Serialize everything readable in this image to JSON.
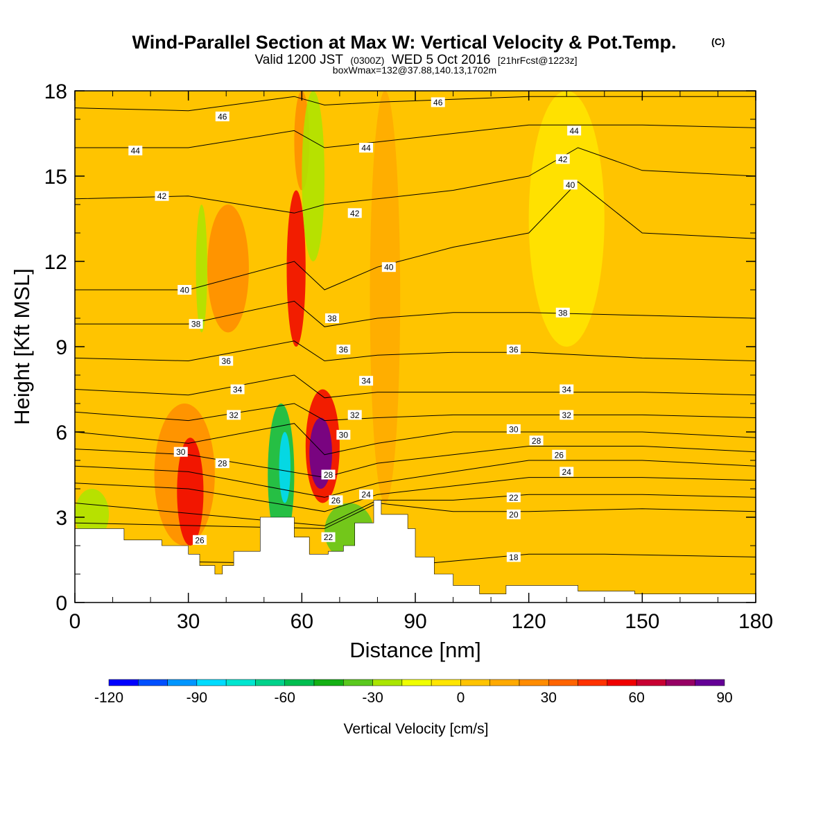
{
  "title": {
    "main": "Wind-Parallel Section at Max W: Vertical Velocity & Pot.Temp.",
    "units_mark": "(C)",
    "valid_prefix": "Valid 1200 JST",
    "valid_utc": "(0300Z)",
    "valid_date": "WED 5 Oct 2016",
    "forecast": "[21hrFcst@1223z]",
    "box_note": "boxWmax=132@37.88,140.13,1702m"
  },
  "colors": {
    "background_field": "#ffc400",
    "terrain": "#ffffff",
    "contour": "#000000",
    "frame": "#000000"
  },
  "chart_data": {
    "type": "heatmap",
    "subtype": "vertical cross-section: filled vertical velocity with potential temperature contours",
    "xlabel": "Distance [nm]",
    "ylabel": "Height [Kft MSL]",
    "xlim": [
      0,
      180
    ],
    "ylim": [
      0,
      18
    ],
    "x_ticks": [
      0,
      30,
      60,
      90,
      120,
      150,
      180
    ],
    "y_ticks": [
      0,
      3,
      6,
      9,
      12,
      15,
      18
    ],
    "grid": false,
    "colorbar": {
      "title": "Vertical Velocity [cm/s]",
      "placement": "bottom",
      "bounds": [
        -120,
        -110,
        -100,
        -90,
        -80,
        -70,
        -60,
        -50,
        -40,
        -30,
        -20,
        -10,
        0,
        10,
        20,
        30,
        40,
        50,
        60,
        70,
        80,
        90
      ],
      "colors": [
        "#0000ff",
        "#0050ff",
        "#0096ff",
        "#00dcff",
        "#00e6d0",
        "#00d28a",
        "#00be50",
        "#14b014",
        "#5ac81e",
        "#aae600",
        "#f0ff00",
        "#ffe600",
        "#ffc400",
        "#ffaa00",
        "#ff8c00",
        "#ff6400",
        "#ff3200",
        "#f00000",
        "#c80032",
        "#960064",
        "#640096"
      ],
      "tick_labels": [
        "-120",
        "-90",
        "-60",
        "-30",
        "0",
        "30",
        "60",
        "90"
      ]
    },
    "vertical_velocity_cells": [
      {
        "x": [
          0,
          9
        ],
        "y": [
          2.2,
          4.0
        ],
        "w": -25
      },
      {
        "x": [
          11,
          32
        ],
        "y": [
          3.0,
          15.5
        ],
        "w": 5
      },
      {
        "x": [
          21,
          37
        ],
        "y": [
          2.0,
          7.0
        ],
        "w": 25
      },
      {
        "x": [
          27,
          34
        ],
        "y": [
          2.0,
          5.8
        ],
        "w": 55
      },
      {
        "x": [
          32,
          35
        ],
        "y": [
          9.5,
          14.0
        ],
        "w": -25
      },
      {
        "x": [
          35,
          46
        ],
        "y": [
          9.5,
          14.0
        ],
        "w": 25
      },
      {
        "x": [
          51,
          58
        ],
        "y": [
          2.0,
          7.0
        ],
        "w": -55
      },
      {
        "x": [
          54,
          57
        ],
        "y": [
          3.5,
          6.0
        ],
        "w": -85
      },
      {
        "x": [
          56,
          61
        ],
        "y": [
          9.0,
          14.5
        ],
        "w": 55
      },
      {
        "x": [
          58,
          62
        ],
        "y": [
          14.5,
          18.0
        ],
        "w": 25
      },
      {
        "x": [
          60,
          66
        ],
        "y": [
          12.0,
          18.0
        ],
        "w": -25
      },
      {
        "x": [
          61,
          70
        ],
        "y": [
          3.5,
          7.5
        ],
        "w": 55
      },
      {
        "x": [
          62,
          68
        ],
        "y": [
          4.0,
          6.5
        ],
        "w": 80
      },
      {
        "x": [
          66,
          79
        ],
        "y": [
          1.5,
          3.5
        ],
        "w": -35
      },
      {
        "x": [
          78,
          86
        ],
        "y": [
          3.5,
          18.0
        ],
        "w": 15
      },
      {
        "x": [
          140,
          150
        ],
        "y": [
          0.5,
          4.5
        ],
        "w": 5
      },
      {
        "x": [
          120,
          140
        ],
        "y": [
          9.0,
          18.0
        ],
        "w": -5
      }
    ],
    "terrain_height": {
      "x": [
        0,
        13,
        13,
        23,
        23,
        30,
        30,
        33,
        33,
        37,
        37,
        39,
        39,
        42,
        42,
        49,
        49,
        58,
        58,
        62,
        62,
        67,
        67,
        71,
        71,
        74,
        74,
        79,
        79,
        81,
        81,
        88,
        88,
        90,
        90,
        95,
        95,
        100,
        100,
        107,
        107,
        114,
        114,
        133,
        133,
        148,
        148,
        180
      ],
      "y": [
        2.6,
        2.6,
        2.2,
        2.2,
        2.0,
        2.0,
        1.7,
        1.7,
        1.3,
        1.3,
        1.0,
        1.0,
        1.3,
        1.3,
        1.8,
        1.8,
        3.0,
        3.0,
        2.3,
        2.3,
        1.7,
        1.7,
        1.8,
        1.8,
        2.0,
        2.0,
        2.8,
        2.8,
        3.6,
        3.6,
        3.1,
        3.1,
        2.6,
        2.6,
        1.6,
        1.6,
        1.0,
        1.0,
        0.6,
        0.6,
        0.3,
        0.3,
        0.6,
        0.6,
        0.4,
        0.4,
        0.3,
        0.3
      ]
    },
    "theta_contours": [
      {
        "theta": 18,
        "x": [
          0,
          45,
          75,
          95,
          120,
          140,
          180
        ],
        "height": [
          1.5,
          1.4,
          1.6,
          1.4,
          1.7,
          1.7,
          1.6
        ]
      },
      {
        "theta": 20,
        "x": [
          0,
          66,
          80,
          100,
          120,
          150,
          180
        ],
        "height": [
          2.8,
          2.6,
          3.5,
          3.2,
          3.2,
          3.3,
          3.2
        ]
      },
      {
        "theta": 22,
        "x": [
          0,
          66,
          80,
          100,
          120,
          150,
          180
        ],
        "height": [
          3.5,
          2.7,
          3.6,
          3.6,
          3.8,
          3.8,
          3.7
        ]
      },
      {
        "theta": 24,
        "x": [
          0,
          30,
          66,
          80,
          100,
          120,
          150,
          180
        ],
        "height": [
          4.2,
          4.0,
          3.2,
          3.8,
          4.1,
          4.4,
          4.4,
          4.3
        ]
      },
      {
        "theta": 26,
        "x": [
          0,
          30,
          66,
          80,
          100,
          120,
          150,
          180
        ],
        "height": [
          4.8,
          4.6,
          3.7,
          4.2,
          4.6,
          5.0,
          5.0,
          4.8
        ]
      },
      {
        "theta": 28,
        "x": [
          0,
          30,
          66,
          80,
          100,
          120,
          150,
          180
        ],
        "height": [
          5.4,
          5.2,
          4.4,
          4.9,
          5.2,
          5.5,
          5.5,
          5.3
        ]
      },
      {
        "theta": 30,
        "x": [
          0,
          30,
          58,
          66,
          80,
          100,
          120,
          150,
          180
        ],
        "height": [
          6.0,
          5.6,
          6.3,
          5.2,
          5.6,
          6.0,
          6.0,
          6.0,
          5.8
        ]
      },
      {
        "theta": 32,
        "x": [
          0,
          30,
          58,
          66,
          80,
          100,
          120,
          150,
          180
        ],
        "height": [
          6.7,
          6.4,
          7.0,
          6.4,
          6.5,
          6.6,
          6.6,
          6.6,
          6.5
        ]
      },
      {
        "theta": 34,
        "x": [
          0,
          30,
          58,
          66,
          80,
          100,
          120,
          150,
          180
        ],
        "height": [
          7.5,
          7.3,
          8.0,
          7.2,
          7.4,
          7.4,
          7.4,
          7.4,
          7.3
        ]
      },
      {
        "theta": 36,
        "x": [
          0,
          30,
          58,
          66,
          80,
          100,
          120,
          150,
          180
        ],
        "height": [
          8.6,
          8.5,
          9.2,
          8.5,
          8.7,
          8.8,
          8.8,
          8.6,
          8.5
        ]
      },
      {
        "theta": 38,
        "x": [
          0,
          30,
          58,
          66,
          80,
          100,
          120,
          150,
          180
        ],
        "height": [
          9.8,
          9.8,
          10.6,
          9.7,
          10.0,
          10.2,
          10.2,
          10.1,
          10.0
        ]
      },
      {
        "theta": 40,
        "x": [
          0,
          30,
          58,
          66,
          80,
          100,
          120,
          133,
          150,
          180
        ],
        "height": [
          11.0,
          11.0,
          12.0,
          11.0,
          11.8,
          12.5,
          13.0,
          14.8,
          13.0,
          12.8
        ]
      },
      {
        "theta": 42,
        "x": [
          0,
          30,
          58,
          66,
          80,
          100,
          120,
          133,
          150,
          180
        ],
        "height": [
          14.2,
          14.3,
          13.7,
          14.0,
          14.2,
          14.5,
          15.0,
          16.0,
          15.2,
          15.0
        ]
      },
      {
        "theta": 44,
        "x": [
          0,
          30,
          58,
          66,
          80,
          100,
          120,
          150,
          180
        ],
        "height": [
          16.0,
          16.0,
          16.6,
          16.0,
          16.2,
          16.5,
          16.8,
          16.8,
          16.7
        ]
      },
      {
        "theta": 46,
        "x": [
          0,
          30,
          58,
          66,
          80,
          100,
          120,
          150,
          180
        ],
        "height": [
          17.4,
          17.3,
          17.8,
          17.5,
          17.6,
          17.7,
          17.8,
          17.8,
          17.8
        ]
      }
    ],
    "contour_labels": [
      {
        "text": "18",
        "x": 116,
        "y": 1.6
      },
      {
        "text": "20",
        "x": 116,
        "y": 3.1
      },
      {
        "text": "22",
        "x": 116,
        "y": 3.7
      },
      {
        "text": "24",
        "x": 130,
        "y": 4.6
      },
      {
        "text": "26",
        "x": 128,
        "y": 5.2
      },
      {
        "text": "28",
        "x": 122,
        "y": 5.7
      },
      {
        "text": "30",
        "x": 116,
        "y": 6.1
      },
      {
        "text": "32",
        "x": 130,
        "y": 6.6
      },
      {
        "text": "34",
        "x": 130,
        "y": 7.5
      },
      {
        "text": "36",
        "x": 116,
        "y": 8.9
      },
      {
        "text": "38",
        "x": 129,
        "y": 10.2
      },
      {
        "text": "40",
        "x": 131,
        "y": 14.7
      },
      {
        "text": "42",
        "x": 129,
        "y": 15.6
      },
      {
        "text": "44",
        "x": 132,
        "y": 16.6
      },
      {
        "text": "46",
        "x": 96,
        "y": 17.6
      },
      {
        "text": "26",
        "x": 33,
        "y": 2.2
      },
      {
        "text": "22",
        "x": 67,
        "y": 2.3
      },
      {
        "text": "26",
        "x": 69,
        "y": 3.6
      },
      {
        "text": "24",
        "x": 77,
        "y": 3.8
      },
      {
        "text": "28",
        "x": 67,
        "y": 4.5
      },
      {
        "text": "30",
        "x": 71,
        "y": 5.9
      },
      {
        "text": "32",
        "x": 74,
        "y": 6.6
      },
      {
        "text": "34",
        "x": 77,
        "y": 7.8
      },
      {
        "text": "36",
        "x": 71,
        "y": 8.9
      },
      {
        "text": "38",
        "x": 68,
        "y": 10.0
      },
      {
        "text": "40",
        "x": 83,
        "y": 11.8
      },
      {
        "text": "42",
        "x": 74,
        "y": 13.7
      },
      {
        "text": "44",
        "x": 77,
        "y": 16.0
      },
      {
        "text": "28",
        "x": 39,
        "y": 4.9
      },
      {
        "text": "30",
        "x": 28,
        "y": 5.3
      },
      {
        "text": "32",
        "x": 42,
        "y": 6.6
      },
      {
        "text": "34",
        "x": 43,
        "y": 7.5
      },
      {
        "text": "36",
        "x": 40,
        "y": 8.5
      },
      {
        "text": "38",
        "x": 32,
        "y": 9.8
      },
      {
        "text": "40",
        "x": 29,
        "y": 11.0
      },
      {
        "text": "42",
        "x": 23,
        "y": 14.3
      },
      {
        "text": "44",
        "x": 16,
        "y": 15.9
      },
      {
        "text": "46",
        "x": 39,
        "y": 17.1
      }
    ]
  }
}
